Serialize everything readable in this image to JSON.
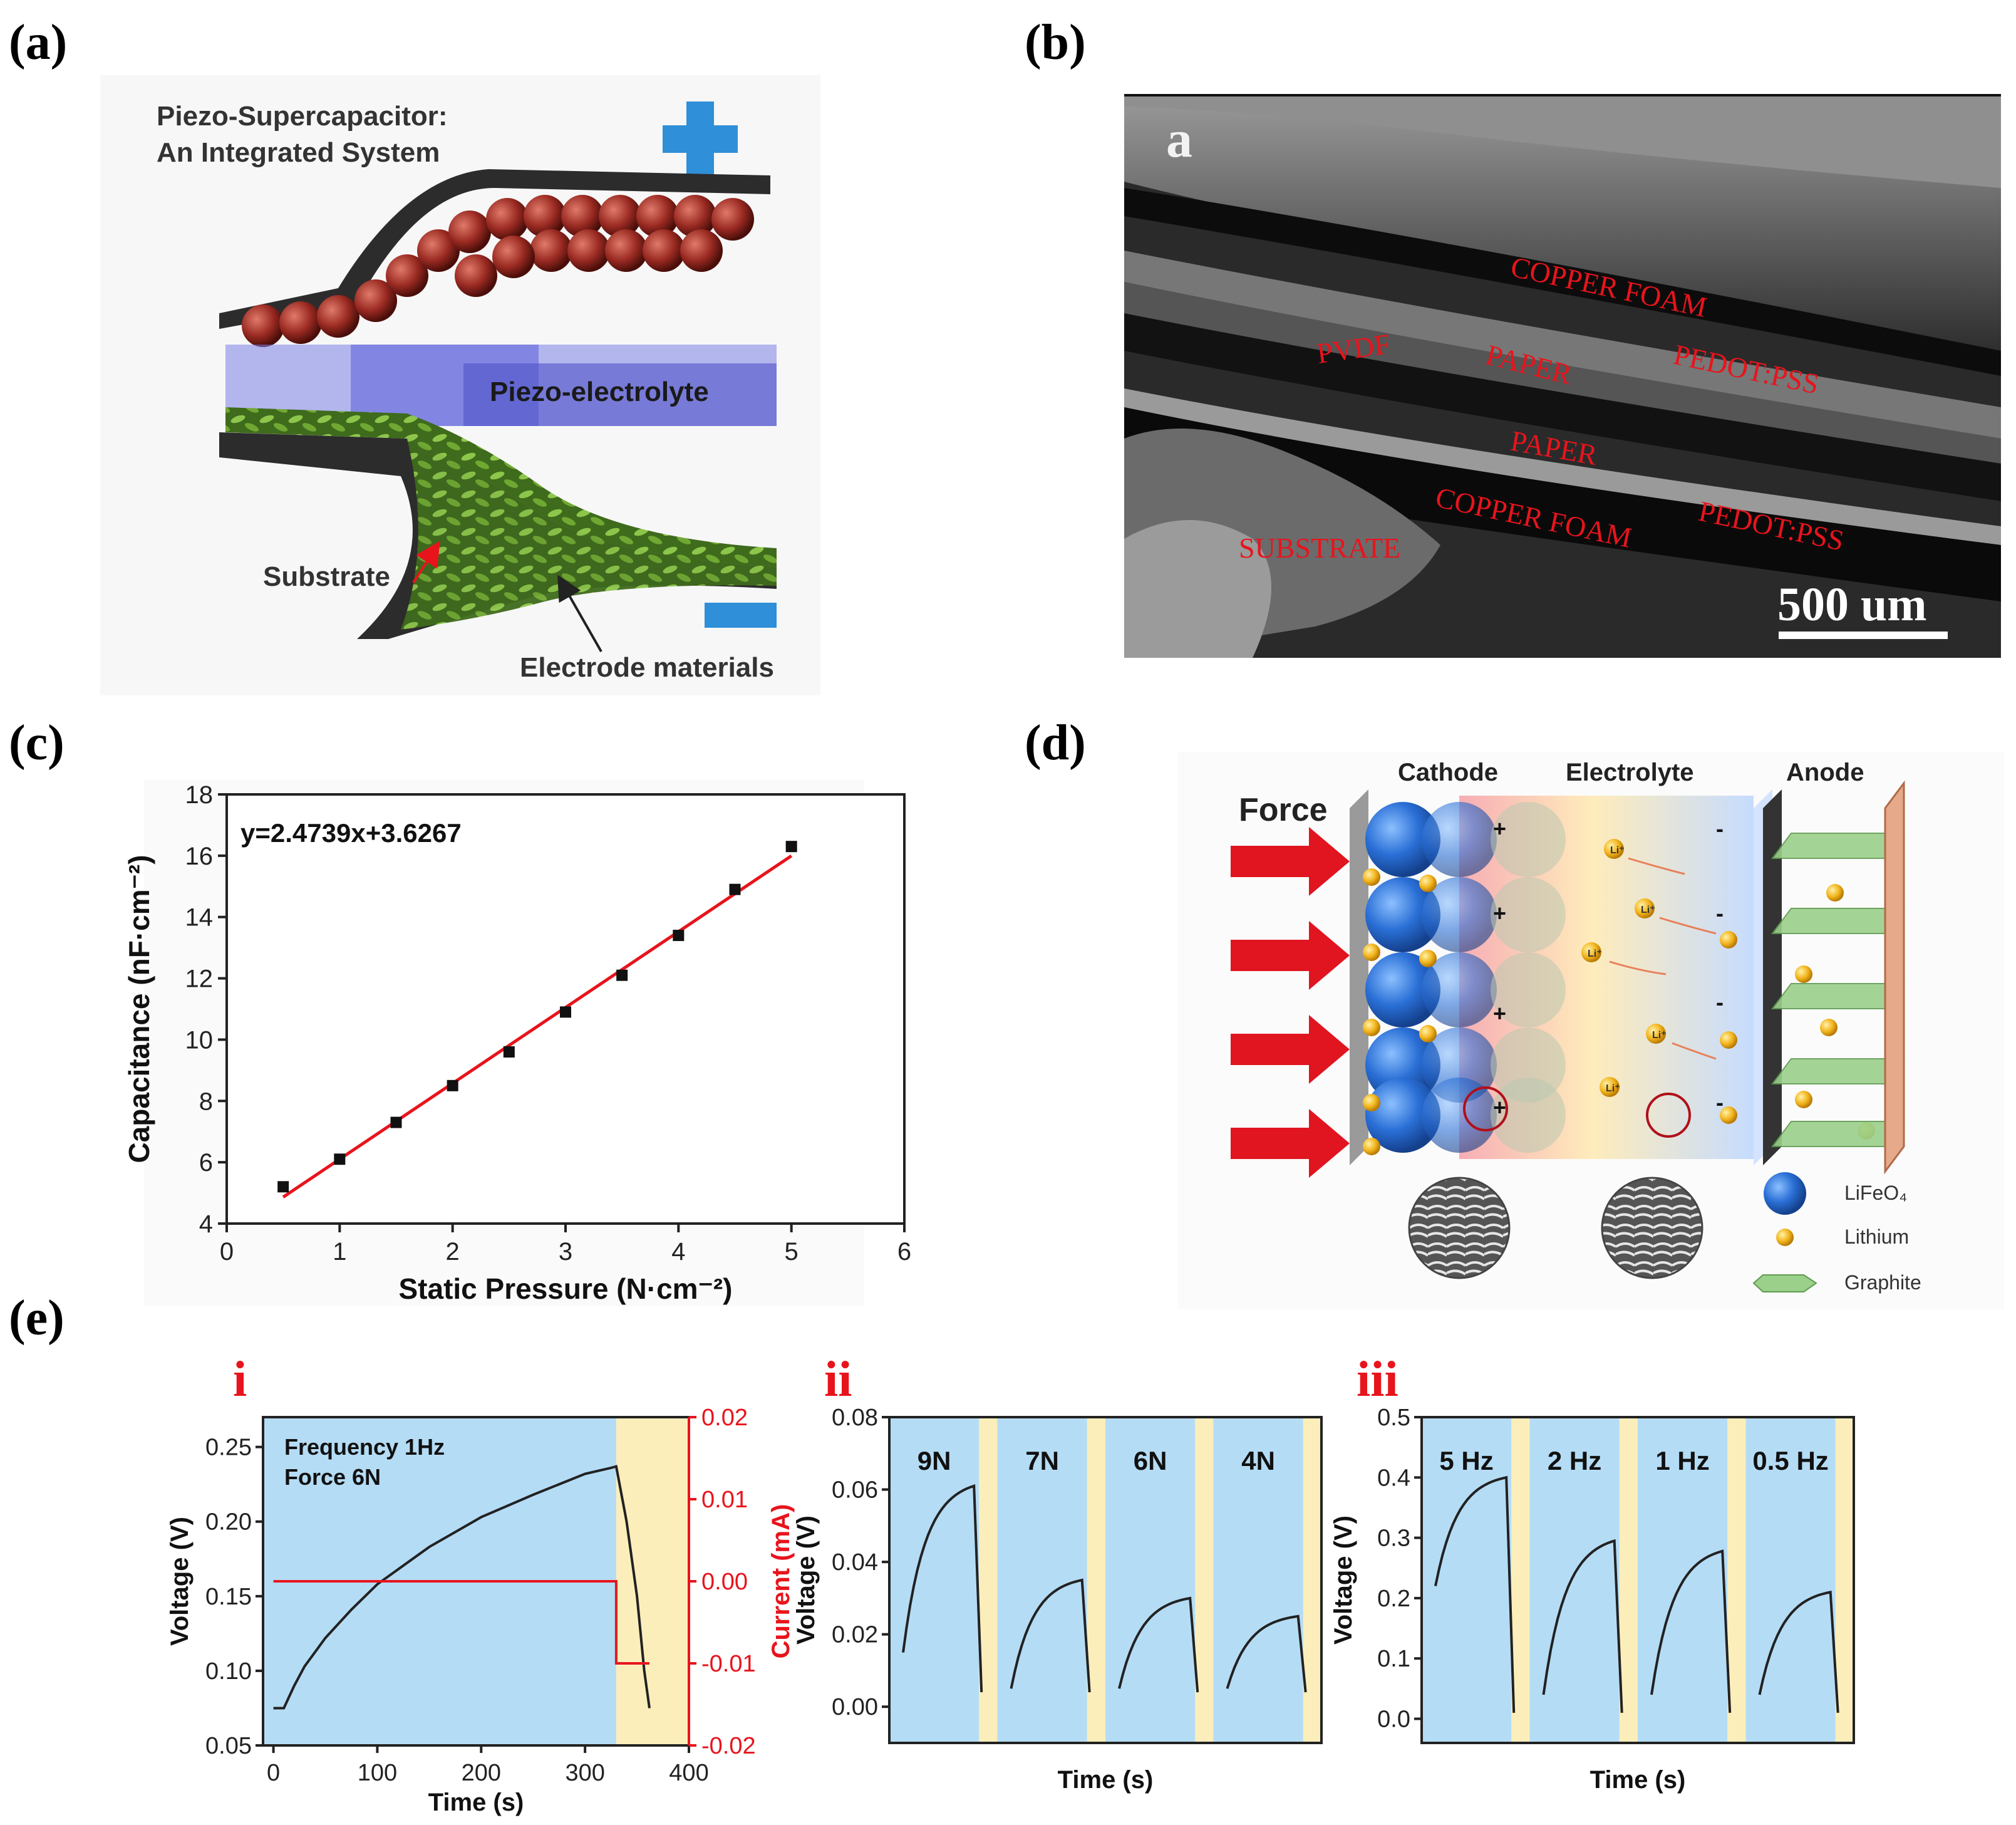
{
  "panels": {
    "a": {
      "letter": "(a)",
      "title_line1": "Piezo-Supercapacitor:",
      "title_line2": "An Integrated System",
      "electrolyte_label": "Piezo-electrolyte",
      "substrate_label": "Substrate",
      "electrode_label": "Electrode materials"
    },
    "b": {
      "letter": "(b)",
      "inset_letter": "a",
      "layers": [
        "COPPER FOAM",
        "PVDF",
        "PAPER",
        "PEDOT:PSS",
        "PAPER",
        "COPPER FOAM",
        "PEDOT:PSS",
        "SUBSTRATE"
      ],
      "scalebar": "500 um"
    },
    "c": {
      "letter": "(c)"
    },
    "d": {
      "letter": "(d)",
      "force_label": "Force",
      "cathode": "Cathode",
      "electrolyte": "Electrolyte",
      "anode": "Anode",
      "ion_label": "Li⁺",
      "plus": "+",
      "minus": "-",
      "legend": [
        "LiFeO₄",
        "Lithium",
        "Graphite"
      ]
    },
    "e": {
      "letter": "(e)"
    }
  },
  "colors": {
    "red_label": "#e8141c",
    "blue_region": "#b5dcf5",
    "yellow_region": "#fbeebb",
    "fit_line": "#e8141c",
    "curve": "#222222"
  },
  "chart_data": [
    {
      "id": "c",
      "type": "scatter",
      "title": "",
      "xlabel": "Static Pressure (N·cm⁻²)",
      "ylabel": "Capacitance (nF·cm⁻²)",
      "equation": "y=2.4739x+3.6267",
      "fit": {
        "slope": 2.4739,
        "intercept": 3.6267
      },
      "x": [
        0.5,
        1,
        1.5,
        2,
        2.5,
        3,
        3.5,
        4,
        4.5,
        5
      ],
      "y": [
        5.2,
        6.1,
        7.3,
        8.5,
        9.6,
        10.9,
        12.1,
        13.4,
        14.9,
        16.3
      ],
      "xlim": [
        0,
        6
      ],
      "ylim": [
        4,
        18
      ],
      "xticks": [
        "0",
        "1",
        "2",
        "3",
        "4",
        "5",
        "6"
      ],
      "yticks": [
        "4",
        "6",
        "8",
        "10",
        "12",
        "14",
        "16",
        "18"
      ]
    },
    {
      "id": "e-i",
      "type": "line",
      "label": "i",
      "xlabel": "Time (s)",
      "ylabel": "Voltage (V)",
      "y2label": "Current (mA)",
      "annotation": [
        "Frequency 1Hz",
        "Force 6N"
      ],
      "xlim": [
        -10,
        400
      ],
      "ylim": [
        0.05,
        0.27
      ],
      "y2lim": [
        -0.02,
        0.02
      ],
      "xticks": [
        "0",
        "100",
        "200",
        "300",
        "400"
      ],
      "yticks": [
        "0.05",
        "0.10",
        "0.15",
        "0.20",
        "0.25"
      ],
      "y2ticks": [
        "-0.02",
        "-0.01",
        "0.00",
        "0.01",
        "0.02"
      ],
      "regions": [
        {
          "from": -10,
          "to": 330,
          "kind": "blue"
        },
        {
          "from": 330,
          "to": 400,
          "kind": "yellow"
        }
      ],
      "voltage": {
        "x": [
          0,
          10,
          20,
          30,
          50,
          75,
          100,
          150,
          200,
          250,
          300,
          325,
          330,
          340,
          350,
          357,
          362
        ],
        "y": [
          0.075,
          0.075,
          0.09,
          0.103,
          0.122,
          0.141,
          0.158,
          0.183,
          0.203,
          0.218,
          0.232,
          0.236,
          0.237,
          0.2,
          0.15,
          0.1,
          0.075
        ]
      },
      "current": {
        "x": [
          0,
          330,
          330,
          362
        ],
        "y": [
          0.0,
          0.0,
          -0.01,
          -0.01
        ]
      }
    },
    {
      "id": "e-ii",
      "type": "line",
      "label": "ii",
      "xlabel": "Time (s)",
      "ylabel": "Voltage (V)",
      "ylim": [
        -0.01,
        0.08
      ],
      "yticks": [
        "0.00",
        "0.02",
        "0.04",
        "0.06",
        "0.08"
      ],
      "segments": [
        {
          "name": "9N",
          "start": 0.015,
          "peak": 0.061
        },
        {
          "name": "7N",
          "start": 0.005,
          "peak": 0.035
        },
        {
          "name": "6N",
          "start": 0.005,
          "peak": 0.03
        },
        {
          "name": "4N",
          "start": 0.005,
          "peak": 0.025
        }
      ]
    },
    {
      "id": "e-iii",
      "type": "line",
      "label": "iii",
      "xlabel": "Time (s)",
      "ylabel": "Voltage (V)",
      "ylim": [
        -0.04,
        0.5
      ],
      "yticks": [
        "0.0",
        "0.1",
        "0.2",
        "0.3",
        "0.4",
        "0.5"
      ],
      "segments": [
        {
          "name": "5 Hz",
          "start": 0.22,
          "peak": 0.4
        },
        {
          "name": "2 Hz",
          "start": 0.04,
          "peak": 0.295
        },
        {
          "name": "1 Hz",
          "start": 0.04,
          "peak": 0.278
        },
        {
          "name": "0.5 Hz",
          "start": 0.04,
          "peak": 0.21
        }
      ]
    }
  ]
}
